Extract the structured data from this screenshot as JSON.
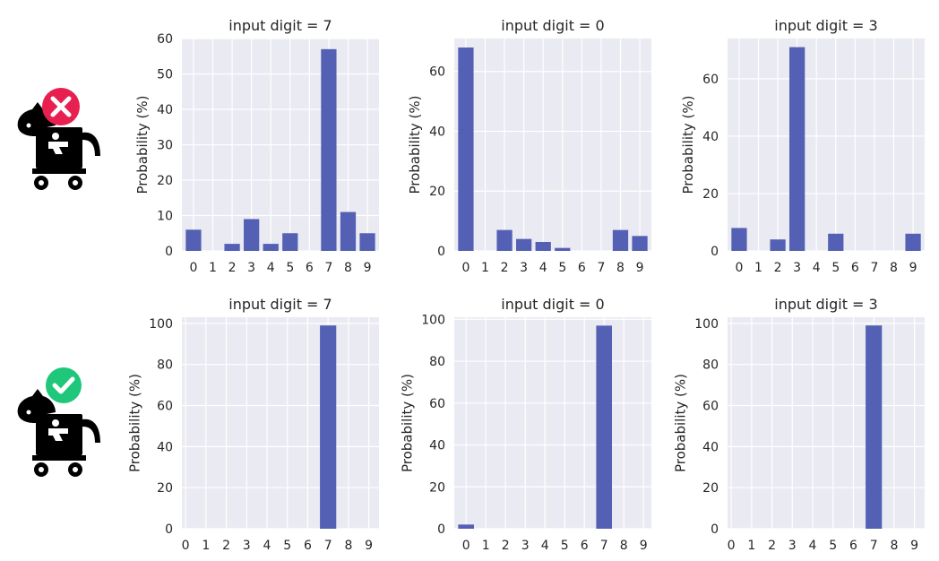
{
  "colors": {
    "bar": "#5460b4",
    "panel_bg": "#eaeaf2",
    "grid": "#ffffff",
    "bad_badge": "#e8204f",
    "good_badge": "#1ec77a"
  },
  "icons": {
    "row1": {
      "horse": "trojan-horse-icon",
      "badge": "cross-badge-icon"
    },
    "row2": {
      "horse": "trojan-horse-icon",
      "badge": "check-badge-icon"
    }
  },
  "chart_data": [
    {
      "type": "bar",
      "title": "input digit = 7",
      "ylabel": "Probability (%)",
      "categories": [
        "0",
        "1",
        "2",
        "3",
        "4",
        "5",
        "6",
        "7",
        "8",
        "9"
      ],
      "values": [
        6,
        0,
        2,
        9,
        2,
        5,
        0,
        57,
        11,
        5
      ],
      "ylim": [
        0,
        60
      ],
      "yticks": [
        "0",
        "10",
        "20",
        "30",
        "40",
        "50",
        "60"
      ],
      "grid": true
    },
    {
      "type": "bar",
      "title": "input digit = 0",
      "ylabel": "Probability (%)",
      "categories": [
        "0",
        "1",
        "2",
        "3",
        "4",
        "5",
        "6",
        "7",
        "8",
        "9"
      ],
      "values": [
        68,
        0,
        7,
        4,
        3,
        1,
        0,
        0,
        7,
        5
      ],
      "ylim": [
        0,
        71
      ],
      "yticks": [
        "0",
        "20",
        "40",
        "60"
      ],
      "grid": true
    },
    {
      "type": "bar",
      "title": "input digit = 3",
      "ylabel": "Probability (%)",
      "categories": [
        "0",
        "1",
        "2",
        "3",
        "4",
        "5",
        "6",
        "7",
        "8",
        "9"
      ],
      "values": [
        8,
        0,
        4,
        71,
        0,
        6,
        0,
        0,
        0,
        6
      ],
      "ylim": [
        0,
        74
      ],
      "yticks": [
        "0",
        "20",
        "40",
        "60"
      ],
      "grid": true
    },
    {
      "type": "bar",
      "title": "input digit = 7",
      "ylabel": "Probability (%)",
      "categories": [
        "0",
        "1",
        "2",
        "3",
        "4",
        "5",
        "6",
        "7",
        "8",
        "9"
      ],
      "values": [
        0,
        0,
        0,
        0,
        0,
        0,
        0,
        99,
        0,
        0
      ],
      "ylim": [
        0,
        103
      ],
      "yticks": [
        "0",
        "20",
        "40",
        "60",
        "80",
        "100"
      ],
      "grid": true
    },
    {
      "type": "bar",
      "title": "input digit = 0",
      "ylabel": "Probability (%)",
      "categories": [
        "0",
        "1",
        "2",
        "3",
        "4",
        "5",
        "6",
        "7",
        "8",
        "9"
      ],
      "values": [
        2,
        0,
        0,
        0,
        0,
        0,
        0,
        97,
        0,
        0
      ],
      "ylim": [
        0,
        101
      ],
      "yticks": [
        "0",
        "20",
        "40",
        "60",
        "80",
        "100"
      ],
      "grid": true
    },
    {
      "type": "bar",
      "title": "input digit = 3",
      "ylabel": "Probability (%)",
      "categories": [
        "0",
        "1",
        "2",
        "3",
        "4",
        "5",
        "6",
        "7",
        "8",
        "9"
      ],
      "values": [
        0,
        0,
        0,
        0,
        0,
        0,
        0,
        99,
        0,
        0
      ],
      "ylim": [
        0,
        103
      ],
      "yticks": [
        "0",
        "20",
        "40",
        "60",
        "80",
        "100"
      ],
      "grid": true
    }
  ]
}
